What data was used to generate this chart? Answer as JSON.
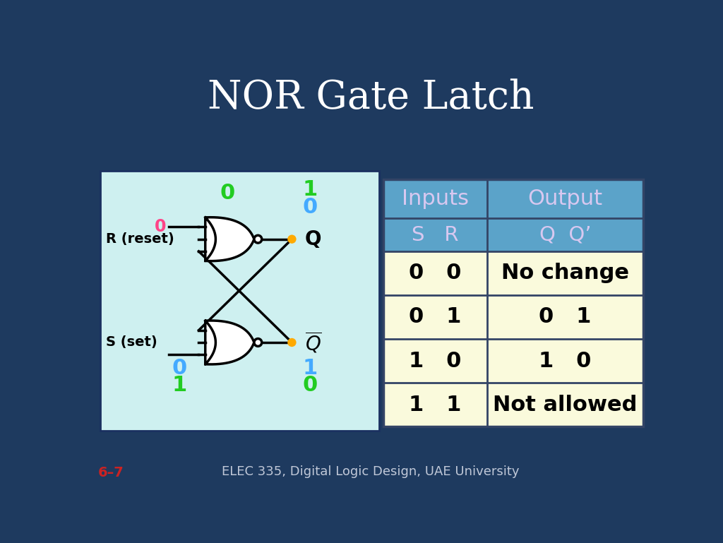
{
  "title": "NOR Gate Latch",
  "title_color": "#ffffff",
  "title_fontsize": 40,
  "bg_color": "#1e3a5f",
  "circuit_bg": "#cef0f0",
  "table_header_bg": "#5ba3c9",
  "table_body_bg": "#fafadc",
  "table_header_text_color": "#d8c8f0",
  "footer_text": "ELEC 335, Digital Logic Design, UAE University",
  "footer_color": "#c0c8d8",
  "slide_number": "6–7",
  "slide_number_color": "#cc2222",
  "green_color": "#22cc22",
  "blue_color": "#44aaff",
  "red_color": "#ff4488",
  "dot_color": "#ffaa00",
  "inputs_header": "Inputs",
  "output_header": "Output",
  "sr_header": "S   R",
  "qq_header": "Q  Q’",
  "table_rows": [
    [
      "0   0",
      "No change"
    ],
    [
      "0   1",
      "0   1"
    ],
    [
      "1   0",
      "1   0"
    ],
    [
      "1   1",
      "Not allowed"
    ]
  ]
}
